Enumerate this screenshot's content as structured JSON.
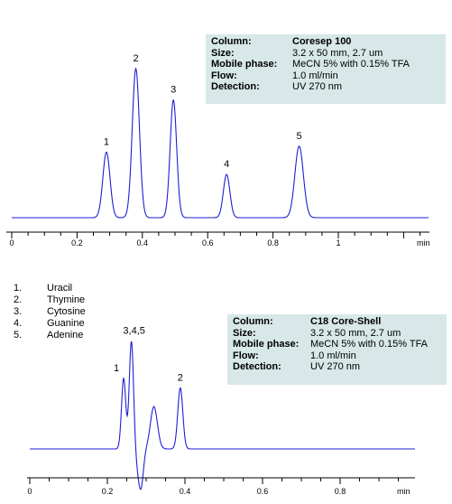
{
  "chart_data": [
    {
      "type": "line",
      "title": "",
      "xlabel": "min",
      "ylabel": "",
      "xlim": [
        0,
        1.25
      ],
      "xticks": [
        "0",
        "0.2",
        "0.4",
        "0.6",
        "0.8",
        "1"
      ],
      "xtick_values": [
        0,
        0.2,
        0.4,
        0.6,
        0.8,
        1.0
      ],
      "baseline": 0,
      "peaks": [
        {
          "label": "1",
          "rt": 0.29,
          "height": 0.44,
          "width": 0.011
        },
        {
          "label": "2",
          "rt": 0.38,
          "height": 1.0,
          "width": 0.011
        },
        {
          "label": "3",
          "rt": 0.495,
          "height": 0.79,
          "width": 0.01
        },
        {
          "label": "4",
          "rt": 0.658,
          "height": 0.29,
          "width": 0.01
        },
        {
          "label": "5",
          "rt": 0.88,
          "height": 0.48,
          "width": 0.013
        }
      ],
      "info": [
        {
          "key": "Column:",
          "value": "Coresep  100",
          "bold": true
        },
        {
          "key": "Size:",
          "value": "3.2 x 50 mm, 2.7 um"
        },
        {
          "key": "Mobile phase:",
          "value": "MeCN 5% with 0.15% TFA"
        },
        {
          "key": "Flow:",
          "value": "1.0 ml/min"
        },
        {
          "key": "Detection:",
          "value": "UV 270 nm"
        }
      ],
      "color": "#1f1fd6"
    },
    {
      "type": "line",
      "title": "",
      "xlabel": "min",
      "ylabel": "",
      "xlim": [
        0,
        1.0
      ],
      "xticks": [
        "0",
        "0.2",
        "0.4",
        "0.6",
        "0.8"
      ],
      "xtick_values": [
        0,
        0.2,
        0.4,
        0.6,
        0.8
      ],
      "baseline": 0,
      "peaks": [
        {
          "label": "1",
          "rt": 0.242,
          "height": 0.6,
          "width": 0.0055
        },
        {
          "label": "3,4,5",
          "rt": 0.262,
          "height": 0.92,
          "width": 0.0055
        },
        {
          "label": "",
          "rt": 0.278,
          "height": -0.12,
          "width": 0.006
        },
        {
          "label": "",
          "rt": 0.287,
          "height": -0.3,
          "width": 0.006
        },
        {
          "label": "",
          "rt": 0.32,
          "height": 0.36,
          "width": 0.009
        },
        {
          "label": "2",
          "rt": 0.388,
          "height": 0.52,
          "width": 0.0065
        }
      ],
      "info": [
        {
          "key": "Column:",
          "value": "C18 Core-Shell",
          "bold": true
        },
        {
          "key": "Size:",
          "value": "3.2 x 50 mm, 2.7 um"
        },
        {
          "key": "Mobile phase:",
          "value": "MeCN 5% with 0.15% TFA"
        },
        {
          "key": "Flow:",
          "value": "1.0 ml/min"
        },
        {
          "key": "Detection:",
          "value": "UV 270 nm"
        }
      ],
      "color": "#1f1fd6"
    }
  ],
  "legend": [
    {
      "num": "1.",
      "name": "Uracil"
    },
    {
      "num": "2.",
      "name": "Thymine"
    },
    {
      "num": "3.",
      "name": "Cytosine"
    },
    {
      "num": "4.",
      "name": "Guanine"
    },
    {
      "num": "5.",
      "name": "Adenine"
    }
  ]
}
